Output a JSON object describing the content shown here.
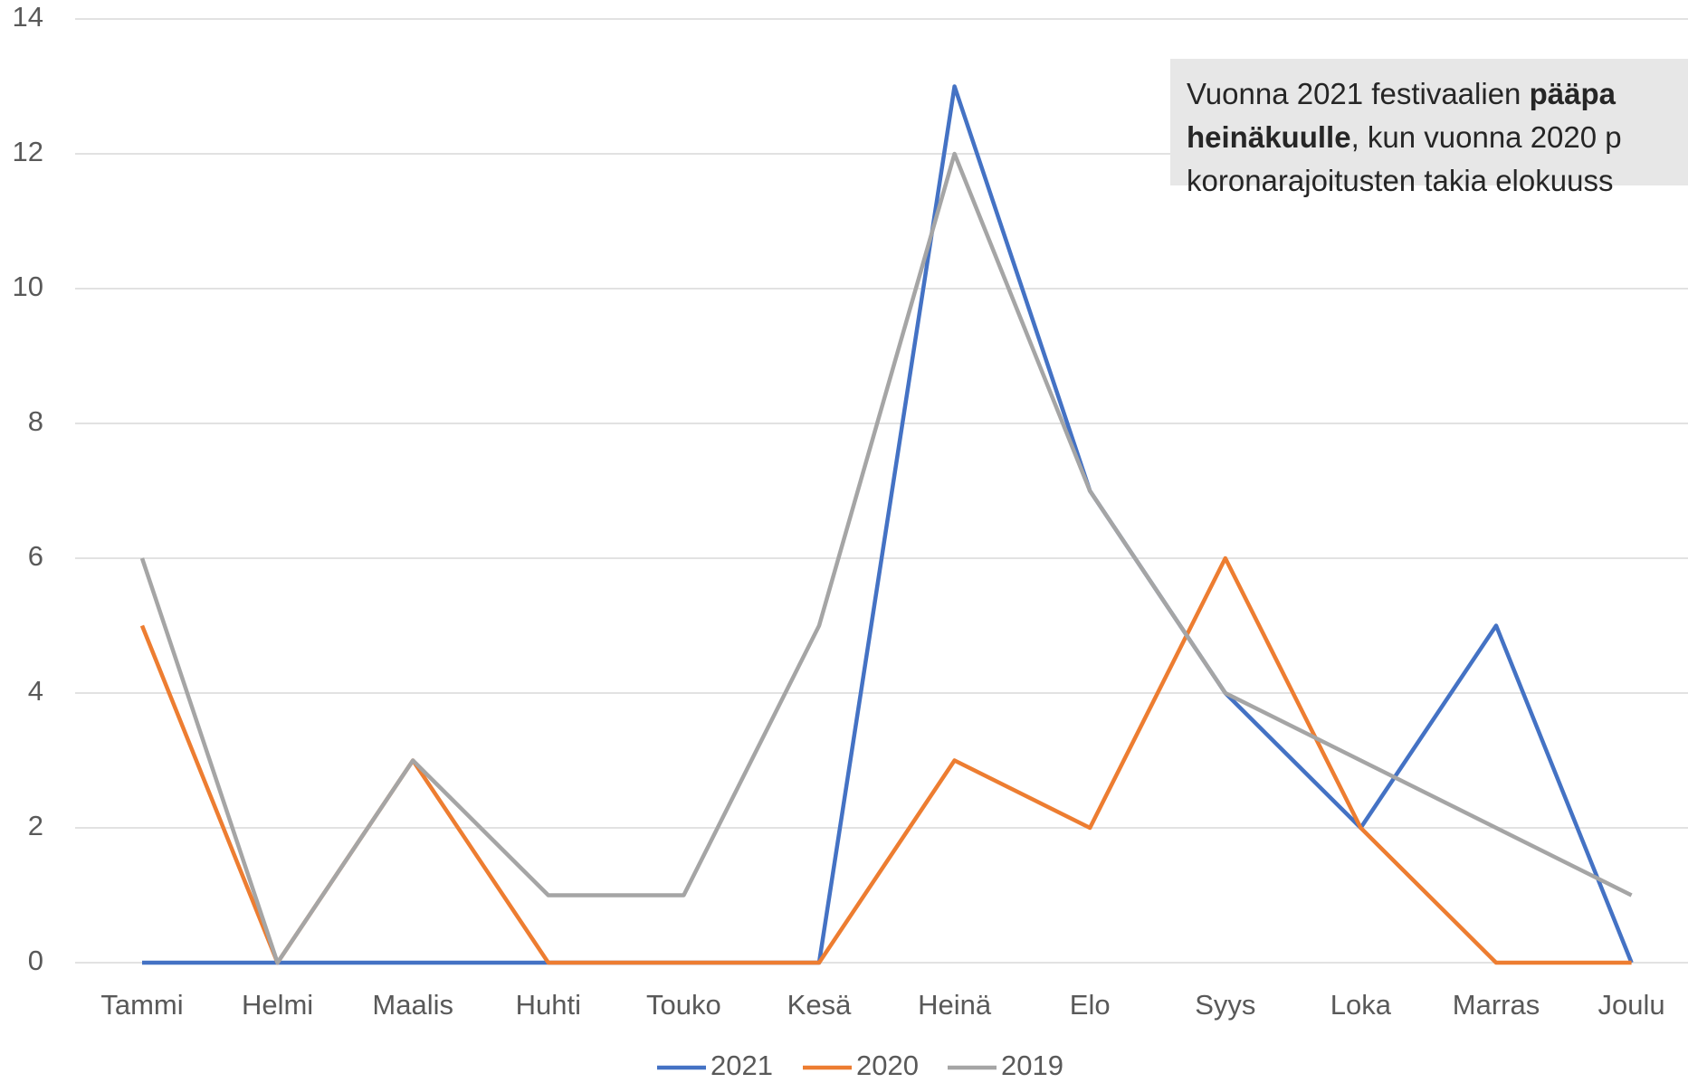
{
  "chart_data": {
    "type": "line",
    "categories": [
      "Tammi",
      "Helmi",
      "Maalis",
      "Huhti",
      "Touko",
      "Kesä",
      "Heinä",
      "Elo",
      "Syys",
      "Loka",
      "Marras",
      "Joulu"
    ],
    "series": [
      {
        "name": "2021",
        "color": "#4472c4",
        "values": [
          0,
          0,
          0,
          0,
          0,
          0,
          13,
          7,
          4,
          2,
          5,
          0
        ]
      },
      {
        "name": "2020",
        "color": "#ed7d31",
        "values": [
          5,
          0,
          3,
          0,
          0,
          0,
          3,
          2,
          6,
          2,
          0,
          0
        ]
      },
      {
        "name": "2019",
        "color": "#a5a5a5",
        "values": [
          6,
          0,
          3,
          1,
          1,
          5,
          12,
          7,
          4,
          3,
          2,
          1
        ]
      }
    ],
    "ylim": [
      0,
      14
    ],
    "yticks": [
      0,
      2,
      4,
      6,
      8,
      10,
      12,
      14
    ],
    "grid": true,
    "legend": "bottom",
    "annotation": [
      [
        {
          "text": "Vuonna 2021 festivaalien "
        },
        {
          "text": "pääpa",
          "bold": true
        }
      ],
      [
        {
          "text": "heinäkuulle",
          "bold": true
        },
        {
          "text": ", kun vuonna 2020 p"
        }
      ],
      [
        {
          "text": "koronarajoitusten takia elokuuss"
        }
      ]
    ]
  }
}
